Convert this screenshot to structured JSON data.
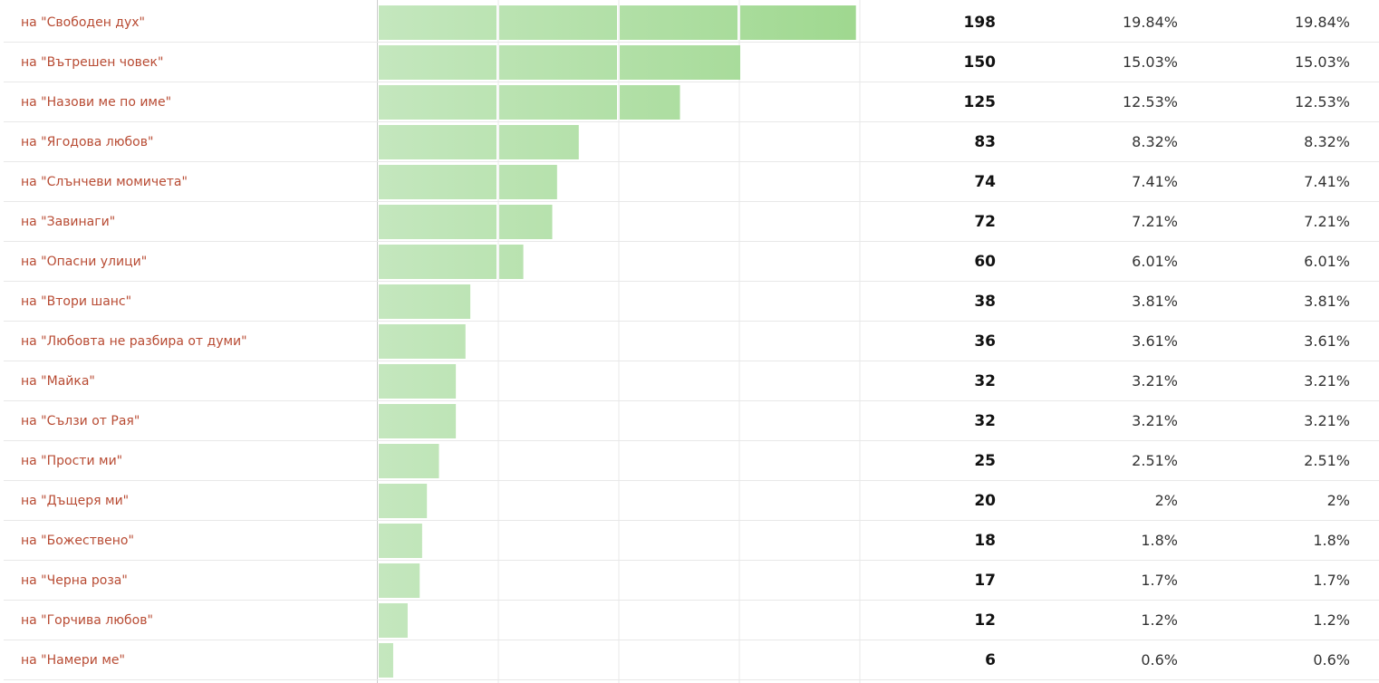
{
  "chart_data": {
    "type": "bar",
    "orientation": "horizontal",
    "x_max": 240,
    "grid_step": 50,
    "colors": {
      "bar_light": "#c4e7be",
      "bar_dark": "#9fd88f",
      "label": "#b84b33",
      "grid": "#e8e8e8"
    },
    "rows": [
      {
        "label": "на \"Свободен дух\"",
        "value": 198,
        "percent": "19.84%",
        "percent2": "19.84%"
      },
      {
        "label": "на \"Вътрешен човек\"",
        "value": 150,
        "percent": "15.03%",
        "percent2": "15.03%"
      },
      {
        "label": "на \"Назови ме по име\"",
        "value": 125,
        "percent": "12.53%",
        "percent2": "12.53%"
      },
      {
        "label": "на \"Ягодова любов\"",
        "value": 83,
        "percent": "8.32%",
        "percent2": "8.32%"
      },
      {
        "label": "на \"Слънчеви момичета\"",
        "value": 74,
        "percent": "7.41%",
        "percent2": "7.41%"
      },
      {
        "label": "на \"Завинаги\"",
        "value": 72,
        "percent": "7.21%",
        "percent2": "7.21%"
      },
      {
        "label": "на \"Опасни улици\"",
        "value": 60,
        "percent": "6.01%",
        "percent2": "6.01%"
      },
      {
        "label": "на \"Втори шанс\"",
        "value": 38,
        "percent": "3.81%",
        "percent2": "3.81%"
      },
      {
        "label": "на \"Любовта не разбира от думи\"",
        "value": 36,
        "percent": "3.61%",
        "percent2": "3.61%"
      },
      {
        "label": "на \"Майка\"",
        "value": 32,
        "percent": "3.21%",
        "percent2": "3.21%"
      },
      {
        "label": "на \"Сълзи от Рая\"",
        "value": 32,
        "percent": "3.21%",
        "percent2": "3.21%"
      },
      {
        "label": "на \"Прости ми\"",
        "value": 25,
        "percent": "2.51%",
        "percent2": "2.51%"
      },
      {
        "label": "на \"Дъщеря ми\"",
        "value": 20,
        "percent": "2%",
        "percent2": "2%"
      },
      {
        "label": "на \"Божествено\"",
        "value": 18,
        "percent": "1.8%",
        "percent2": "1.8%"
      },
      {
        "label": "на \"Черна роза\"",
        "value": 17,
        "percent": "1.7%",
        "percent2": "1.7%"
      },
      {
        "label": "на \"Горчива любов\"",
        "value": 12,
        "percent": "1.2%",
        "percent2": "1.2%"
      },
      {
        "label": "на \"Намери ме\"",
        "value": 6,
        "percent": "0.6%",
        "percent2": "0.6%"
      }
    ]
  }
}
